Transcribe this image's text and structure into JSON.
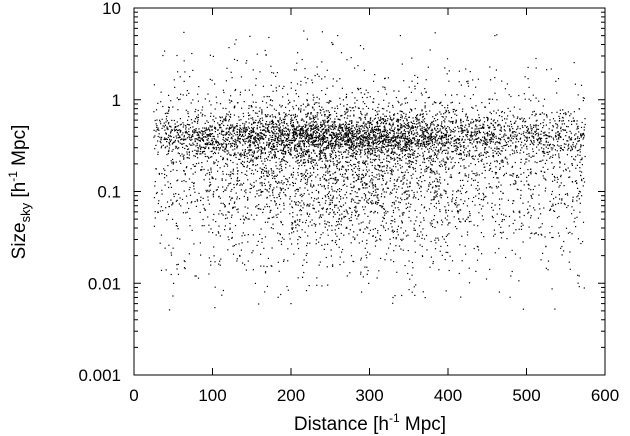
{
  "chart_data": {
    "type": "scatter",
    "title": "",
    "xlabel": "Distance [h",
    "xlabel_sup": "-1",
    "xlabel_tail": " Mpc]",
    "ylabel": "Size",
    "ylabel_sub": "sky",
    "ylabel_tail": " [h",
    "ylabel_sup": "-1",
    "ylabel_tail2": " Mpc]",
    "xlim": [
      0,
      600
    ],
    "ylim": [
      0.001,
      10
    ],
    "y_scale": "log",
    "x_ticks": [
      0,
      100,
      200,
      300,
      400,
      500,
      600
    ],
    "x_tick_labels": [
      "0",
      "100",
      "200",
      "300",
      "400",
      "500",
      "600"
    ],
    "y_ticks": [
      0.001,
      0.01,
      0.1,
      1,
      10
    ],
    "y_tick_labels": [
      "0.001",
      "0.01",
      "0.1",
      "1",
      "10"
    ],
    "grid": false,
    "legend": "none",
    "marker_color": "#000000",
    "sample_points": [
      [
        40,
        0.3
      ],
      [
        75,
        0.4
      ],
      [
        95,
        0.3
      ],
      [
        110,
        0.5
      ],
      [
        130,
        4.5
      ],
      [
        150,
        0.25
      ],
      [
        200,
        0.006
      ],
      [
        220,
        0.4
      ],
      [
        240,
        5.5
      ],
      [
        250,
        0.35
      ],
      [
        290,
        0.008
      ],
      [
        300,
        0.5
      ],
      [
        330,
        0.007
      ],
      [
        360,
        0.4
      ],
      [
        400,
        0.3
      ],
      [
        440,
        0.45
      ],
      [
        480,
        0.012
      ],
      [
        500,
        0.5
      ],
      [
        530,
        0.4
      ],
      [
        570,
        0.5
      ]
    ]
  }
}
